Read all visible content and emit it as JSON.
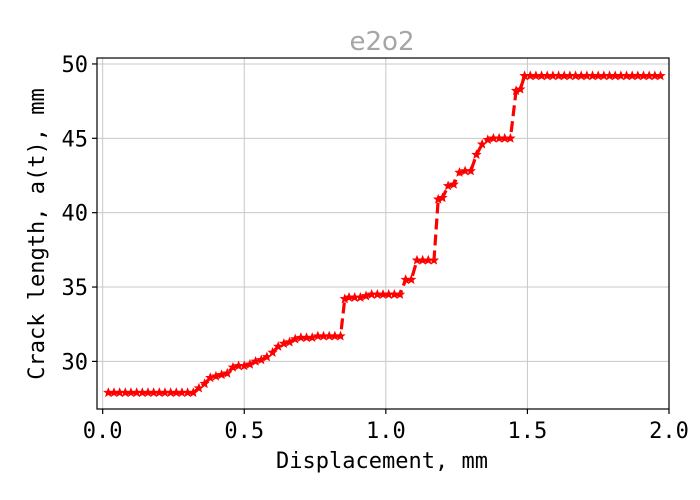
{
  "chart_data": {
    "type": "line",
    "title": "e2o2",
    "xlabel": "Displacement, mm",
    "ylabel": "Crack length, a(t), mm",
    "xlim": [
      -0.02,
      2.0
    ],
    "ylim": [
      26.8,
      50.4
    ],
    "xticks": [
      0.0,
      0.5,
      1.0,
      1.5,
      2.0
    ],
    "xtick_labels": [
      "0.0",
      "0.5",
      "1.0",
      "1.5",
      "2.0"
    ],
    "yticks": [
      30,
      35,
      40,
      45,
      50
    ],
    "ytick_labels": [
      "30",
      "35",
      "40",
      "45",
      "50"
    ],
    "grid": true,
    "series": [
      {
        "color": "#ff0000",
        "line_style": "dashed",
        "marker": "star",
        "x": [
          0.02,
          0.04,
          0.06,
          0.08,
          0.1,
          0.12,
          0.14,
          0.16,
          0.18,
          0.2,
          0.22,
          0.24,
          0.26,
          0.28,
          0.3,
          0.32,
          0.34,
          0.36,
          0.38,
          0.4,
          0.42,
          0.44,
          0.46,
          0.48,
          0.5,
          0.52,
          0.54,
          0.56,
          0.58,
          0.6,
          0.62,
          0.64,
          0.66,
          0.68,
          0.7,
          0.72,
          0.74,
          0.76,
          0.78,
          0.8,
          0.82,
          0.84,
          0.855,
          0.87,
          0.89,
          0.91,
          0.93,
          0.95,
          0.97,
          0.99,
          1.01,
          1.03,
          1.05,
          1.07,
          1.09,
          1.11,
          1.13,
          1.15,
          1.17,
          1.185,
          1.2,
          1.22,
          1.24,
          1.26,
          1.28,
          1.3,
          1.32,
          1.34,
          1.36,
          1.38,
          1.4,
          1.42,
          1.44,
          1.46,
          1.475,
          1.49,
          1.51,
          1.53,
          1.55,
          1.57,
          1.59,
          1.61,
          1.63,
          1.65,
          1.67,
          1.69,
          1.71,
          1.73,
          1.75,
          1.77,
          1.79,
          1.81,
          1.83,
          1.85,
          1.87,
          1.89,
          1.91,
          1.93,
          1.95,
          1.97
        ],
        "y": [
          27.9,
          27.9,
          27.9,
          27.9,
          27.9,
          27.9,
          27.9,
          27.9,
          27.9,
          27.9,
          27.9,
          27.9,
          27.9,
          27.9,
          27.9,
          27.9,
          28.2,
          28.5,
          28.9,
          29.0,
          29.1,
          29.2,
          29.6,
          29.7,
          29.7,
          29.8,
          30.0,
          30.1,
          30.3,
          30.6,
          31.0,
          31.2,
          31.3,
          31.5,
          31.6,
          31.6,
          31.6,
          31.7,
          31.7,
          31.7,
          31.7,
          31.7,
          34.2,
          34.3,
          34.3,
          34.3,
          34.4,
          34.5,
          34.5,
          34.5,
          34.5,
          34.5,
          34.5,
          35.5,
          35.5,
          36.8,
          36.8,
          36.8,
          36.8,
          40.9,
          41.0,
          41.8,
          41.9,
          42.7,
          42.8,
          42.8,
          43.9,
          44.6,
          44.9,
          45.0,
          45.0,
          45.0,
          45.0,
          48.2,
          48.3,
          49.2,
          49.2,
          49.2,
          49.2,
          49.2,
          49.2,
          49.2,
          49.2,
          49.2,
          49.2,
          49.2,
          49.2,
          49.2,
          49.2,
          49.2,
          49.2,
          49.2,
          49.2,
          49.2,
          49.2,
          49.2,
          49.2,
          49.2,
          49.2,
          49.2
        ]
      }
    ]
  }
}
